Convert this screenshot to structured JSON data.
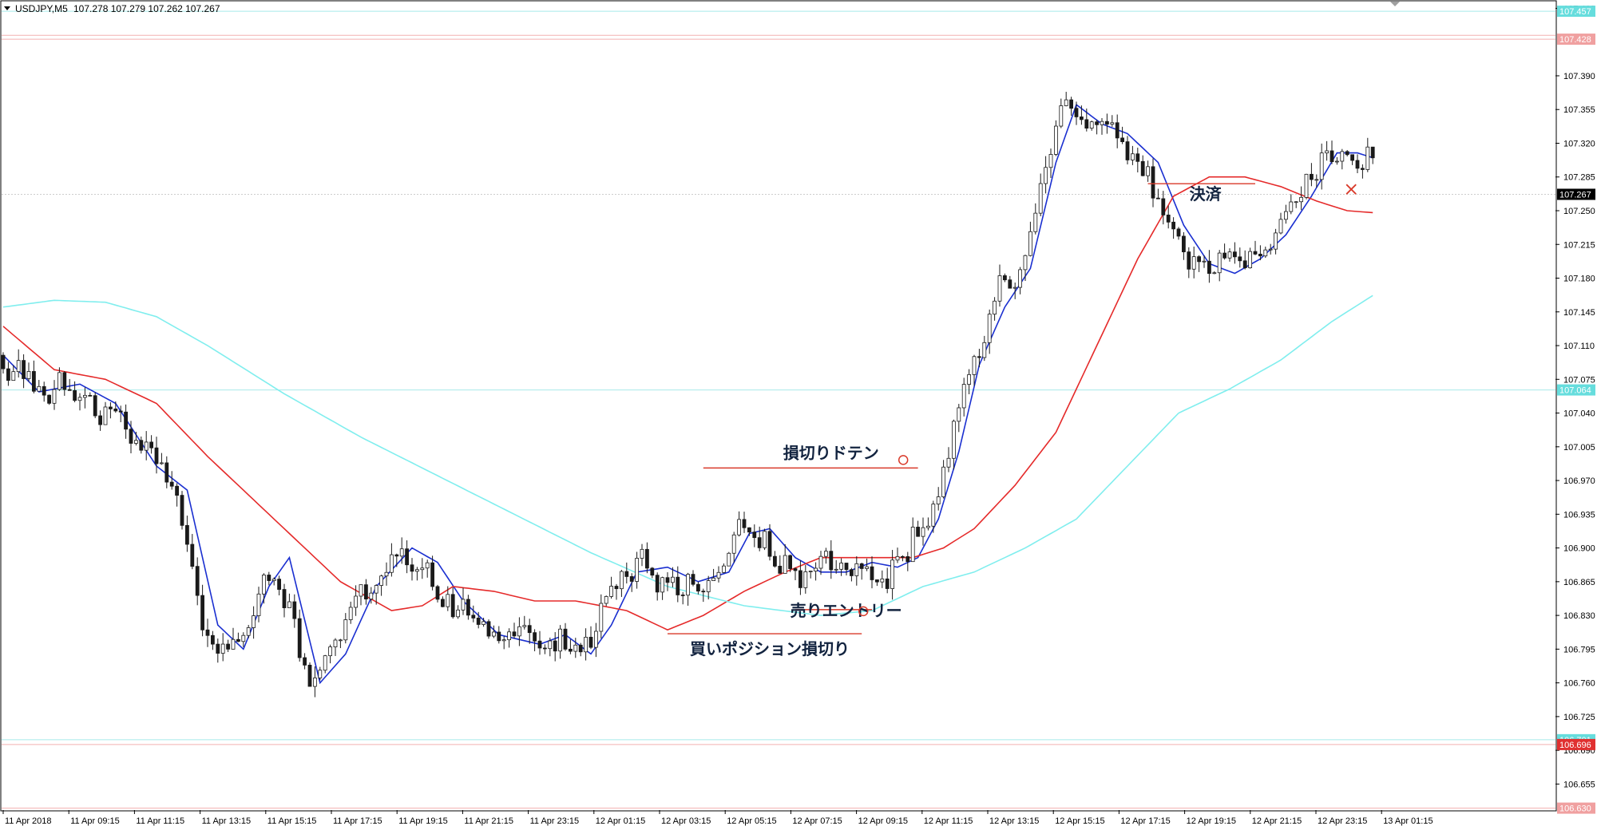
{
  "header": {
    "symbol": "USDJPY,M5",
    "ohlc": "107.278 107.279 107.262 107.267"
  },
  "chart_data": {
    "type": "candlestick",
    "symbol": "USDJPY",
    "timeframe": "M5",
    "ylim": [
      106.628,
      107.467
    ],
    "y_ticks": [
      107.46,
      107.39,
      107.355,
      107.32,
      107.285,
      107.25,
      107.215,
      107.18,
      107.145,
      107.11,
      107.075,
      107.04,
      107.005,
      106.97,
      106.935,
      106.9,
      106.865,
      106.83,
      106.795,
      106.76,
      106.725,
      106.69,
      106.655
    ],
    "y_tick_labels": [
      "107.460",
      "107.390",
      "107.355",
      "107.320",
      "107.285",
      "107.250",
      "107.215",
      "107.180",
      "107.145",
      "107.110",
      "107.075",
      "107.040",
      "107.005",
      "106.970",
      "106.935",
      "106.900",
      "106.865",
      "106.830",
      "106.795",
      "106.760",
      "106.725",
      "106.690",
      "106.655"
    ],
    "x_labels": [
      "11 Apr 2018",
      "11 Apr 09:15",
      "11 Apr 11:15",
      "11 Apr 13:15",
      "11 Apr 15:15",
      "11 Apr 17:15",
      "11 Apr 19:15",
      "11 Apr 21:15",
      "11 Apr 23:15",
      "12 Apr 01:15",
      "12 Apr 03:15",
      "12 Apr 05:15",
      "12 Apr 07:15",
      "12 Apr 09:15",
      "12 Apr 11:15",
      "12 Apr 13:15",
      "12 Apr 15:15",
      "12 Apr 17:15",
      "12 Apr 19:15",
      "12 Apr 21:15",
      "12 Apr 23:15",
      "13 Apr 01:15"
    ],
    "price_markers": [
      {
        "label": "107.457",
        "value": 107.457,
        "color": "#66dddd"
      },
      {
        "label": "107.428",
        "value": 107.428,
        "color": "#f0a0a0"
      },
      {
        "label": "107.267",
        "value": 107.267,
        "color": "#000000"
      },
      {
        "label": "107.064",
        "value": 107.064,
        "color": "#66dddd"
      },
      {
        "label": "106.701",
        "value": 106.701,
        "color": "#66dddd"
      },
      {
        "label": "106.696",
        "value": 106.696,
        "color": "#e03030"
      },
      {
        "label": "106.630",
        "value": 106.63,
        "color": "#f0a0a0"
      }
    ],
    "horizontal_levels": [
      {
        "value": 107.457,
        "color": "#a8eaea"
      },
      {
        "value": 107.432,
        "color": "#f3b0b0"
      },
      {
        "value": 107.428,
        "color": "#f3b0b0"
      },
      {
        "value": 107.267,
        "color": "#cccccc"
      },
      {
        "value": 107.064,
        "color": "#a8eaea"
      },
      {
        "value": 106.701,
        "color": "#a8eaea"
      },
      {
        "value": 106.696,
        "color": "#f3b0b0"
      },
      {
        "value": 106.63,
        "color": "#f3b0b0"
      }
    ],
    "ma_series": [
      {
        "key": "ma_fast",
        "color": "#1a2fd0",
        "points": [
          [
            0,
            107.1
          ],
          [
            7,
            107.062
          ],
          [
            15,
            107.07
          ],
          [
            22,
            107.05
          ],
          [
            30,
            106.985
          ],
          [
            36,
            106.96
          ],
          [
            42,
            106.82
          ],
          [
            47,
            106.795
          ],
          [
            52,
            106.86
          ],
          [
            56,
            106.89
          ],
          [
            62,
            106.76
          ],
          [
            67,
            106.79
          ],
          [
            73,
            106.86
          ],
          [
            80,
            106.9
          ],
          [
            85,
            106.885
          ],
          [
            90,
            106.845
          ],
          [
            97,
            106.81
          ],
          [
            105,
            106.8
          ],
          [
            110,
            106.81
          ],
          [
            115,
            106.79
          ],
          [
            119,
            106.82
          ],
          [
            124,
            106.875
          ],
          [
            130,
            106.88
          ],
          [
            136,
            106.865
          ],
          [
            142,
            106.875
          ],
          [
            146,
            106.915
          ],
          [
            150,
            106.92
          ],
          [
            155,
            106.89
          ],
          [
            160,
            106.875
          ],
          [
            165,
            106.875
          ],
          [
            170,
            106.885
          ],
          [
            175,
            106.88
          ],
          [
            179,
            106.89
          ],
          [
            183,
            106.93
          ],
          [
            187,
            107.0
          ],
          [
            191,
            107.09
          ],
          [
            196,
            107.15
          ],
          [
            201,
            107.19
          ],
          [
            206,
            107.3
          ],
          [
            210,
            107.36
          ],
          [
            215,
            107.34
          ],
          [
            220,
            107.33
          ],
          [
            226,
            107.3
          ],
          [
            231,
            107.235
          ],
          [
            236,
            107.195
          ],
          [
            241,
            107.185
          ],
          [
            246,
            107.2
          ],
          [
            251,
            107.225
          ],
          [
            256,
            107.265
          ],
          [
            261,
            107.31
          ],
          [
            265,
            107.31
          ],
          [
            268,
            107.305
          ]
        ]
      },
      {
        "key": "ma_mid",
        "color": "#e52a2a",
        "points": [
          [
            0,
            107.13
          ],
          [
            10,
            107.085
          ],
          [
            20,
            107.075
          ],
          [
            30,
            107.05
          ],
          [
            40,
            106.995
          ],
          [
            48,
            106.955
          ],
          [
            56,
            106.915
          ],
          [
            66,
            106.865
          ],
          [
            76,
            106.835
          ],
          [
            82,
            106.84
          ],
          [
            88,
            106.86
          ],
          [
            96,
            106.855
          ],
          [
            104,
            106.845
          ],
          [
            112,
            106.845
          ],
          [
            122,
            106.835
          ],
          [
            130,
            106.815
          ],
          [
            137,
            106.83
          ],
          [
            145,
            106.855
          ],
          [
            153,
            106.875
          ],
          [
            160,
            106.89
          ],
          [
            166,
            106.89
          ],
          [
            172,
            106.89
          ],
          [
            178,
            106.89
          ],
          [
            184,
            106.9
          ],
          [
            190,
            106.92
          ],
          [
            198,
            106.965
          ],
          [
            206,
            107.02
          ],
          [
            214,
            107.11
          ],
          [
            222,
            107.2
          ],
          [
            229,
            107.265
          ],
          [
            236,
            107.285
          ],
          [
            243,
            107.285
          ],
          [
            250,
            107.275
          ],
          [
            257,
            107.26
          ],
          [
            263,
            107.25
          ],
          [
            268,
            107.248
          ]
        ]
      },
      {
        "key": "ma_slow",
        "color": "#80eeee",
        "points": [
          [
            0,
            107.15
          ],
          [
            10,
            107.157
          ],
          [
            20,
            107.155
          ],
          [
            30,
            107.14
          ],
          [
            40,
            107.11
          ],
          [
            55,
            107.06
          ],
          [
            70,
            107.015
          ],
          [
            85,
            106.975
          ],
          [
            100,
            106.935
          ],
          [
            115,
            106.895
          ],
          [
            130,
            106.86
          ],
          [
            145,
            106.84
          ],
          [
            160,
            106.83
          ],
          [
            170,
            106.835
          ],
          [
            180,
            106.86
          ],
          [
            190,
            106.875
          ],
          [
            200,
            106.9
          ],
          [
            210,
            106.93
          ],
          [
            220,
            106.985
          ],
          [
            230,
            107.04
          ],
          [
            240,
            107.065
          ],
          [
            250,
            107.095
          ],
          [
            260,
            107.135
          ],
          [
            268,
            107.162
          ]
        ]
      }
    ],
    "annotations": [
      {
        "key": "stop_doten",
        "text": "損切りドテン",
        "value": 106.983,
        "bar_from": 137,
        "bar_to": 179
      },
      {
        "key": "sell_entry",
        "text": "売りエントリー",
        "value": 106.836,
        "bar_from": 155,
        "bar_to": 170
      },
      {
        "key": "long_stop",
        "text": "買いポジション損切り",
        "value": 106.811,
        "bar_from": 130,
        "bar_to": 168
      },
      {
        "key": "settle",
        "text": "決済",
        "value": 107.278,
        "bar_from": 224,
        "bar_to": 245
      }
    ],
    "current_price": 107.267
  }
}
